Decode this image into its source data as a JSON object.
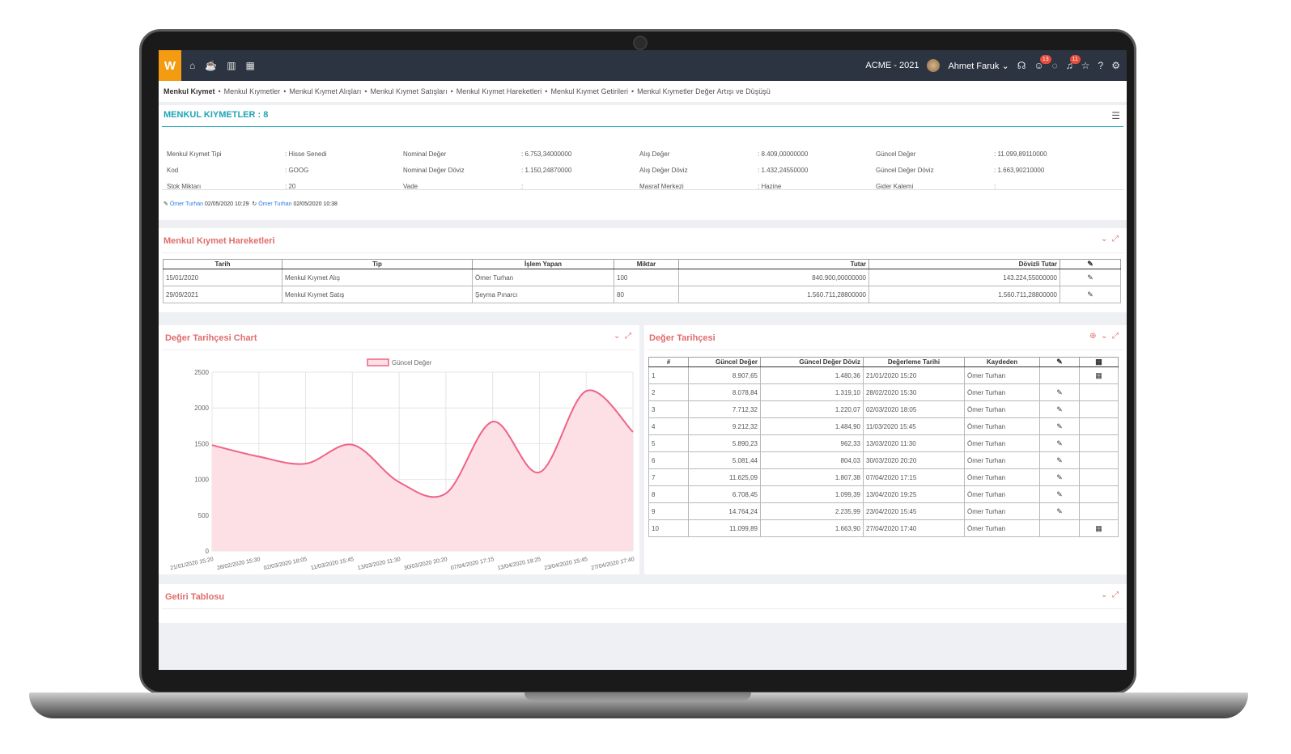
{
  "app": {
    "logo": "W",
    "company": "ACME - 2021",
    "user": "Ahmet Faruk",
    "chat_badge": "13",
    "bell_badge": "11"
  },
  "breadcrumb": {
    "items": [
      "Menkul Kıymet",
      "Menkul Kıymetler",
      "Menkul Kıymet Alışları",
      "Menkul Kıymet Satışları",
      "Menkul Kıymet Hareketleri",
      "Menkul Kıymet Getirileri",
      "Menkul Kıymetler Değer Artışı ve Düşüşü"
    ]
  },
  "summary": {
    "title": "MENKUL KIYMETLER : 8",
    "rows": [
      [
        {
          "label": "Menkul Kıymet Tipi",
          "value": ": Hisse Senedi"
        },
        {
          "label": "Nominal Değer",
          "value": ": 6.753,34000000"
        },
        {
          "label": "Alış Değer",
          "value": ": 8.409,00000000"
        },
        {
          "label": "Güncel Değer",
          "value": ": 11.099,89110000"
        }
      ],
      [
        {
          "label": "Kod",
          "value": ": GOOG"
        },
        {
          "label": "Nominal Değer Döviz",
          "value": ": 1.150,24870000"
        },
        {
          "label": "Alış Değer Döviz",
          "value": ": 1.432,24550000"
        },
        {
          "label": "Güncel Değer Döviz",
          "value": ": 1.663,90210000"
        }
      ],
      [
        {
          "label": "Stok Miktarı",
          "value": ": 20"
        },
        {
          "label": "Vade",
          "value": ":"
        },
        {
          "label": "Masraf Merkezi",
          "value": ": Hazine"
        },
        {
          "label": "Gider Kalemi",
          "value": ":"
        }
      ]
    ],
    "created_by": "Ömer Turhan",
    "created_at": "02/05/2020 10:29",
    "updated_by": "Ömer Turhan",
    "updated_at": "02/05/2020 10:38"
  },
  "movements": {
    "title": "Menkul Kıymet Hareketleri",
    "headers": [
      "Tarih",
      "Tip",
      "İşlem Yapan",
      "Miktar",
      "Tutar",
      "Dövizli Tutar"
    ],
    "rows": [
      [
        "15/01/2020",
        "Menkul Kıymet Alış",
        "Ömer Turhan",
        "100",
        "840.900,00000000",
        "143.224,55000000"
      ],
      [
        "29/09/2021",
        "Menkul Kıymet Satış",
        "Şeyma Pınarcı",
        "80",
        "1.560.711,28800000",
        "1.560.711,28800000"
      ]
    ]
  },
  "chart_panel": {
    "title": "Değer Tarihçesi Chart"
  },
  "chart_data": {
    "type": "area",
    "x": [
      "21/01/2020 15:20",
      "28/02/2020 15:30",
      "02/03/2020 18:05",
      "11/03/2020 15:45",
      "13/03/2020 11:30",
      "30/03/2020 20:20",
      "07/04/2020 17:15",
      "13/04/2020 19:25",
      "23/04/2020 15:45",
      "27/04/2020 17:40"
    ],
    "series": [
      {
        "name": "Güncel Değer",
        "values": [
          1480,
          1319,
          1220,
          1485,
          962,
          804,
          1807,
          1099,
          2236,
          1664
        ]
      }
    ],
    "ylim": [
      0,
      2500
    ],
    "yticks": [
      0,
      500,
      1000,
      1500,
      2000,
      2500
    ],
    "grid": true,
    "legend": "top-center",
    "color": "#f06286",
    "fill": "#fde0e6"
  },
  "history": {
    "title": "Değer Tarihçesi",
    "headers": [
      "#",
      "Güncel Değer",
      "Güncel Değer Döviz",
      "Değerleme Tarihi",
      "Kaydeden"
    ],
    "rows": [
      [
        "1",
        "8.907,65",
        "1.480,36",
        "21/01/2020 15:20",
        "Ömer Turhan"
      ],
      [
        "2",
        "8.078,84",
        "1.319,10",
        "28/02/2020 15:30",
        "Ömer Turhan"
      ],
      [
        "3",
        "7.712,32",
        "1.220,07",
        "02/03/2020 18:05",
        "Ömer Turhan"
      ],
      [
        "4",
        "9.212,32",
        "1.484,90",
        "11/03/2020 15:45",
        "Ömer Turhan"
      ],
      [
        "5",
        "5.890,23",
        "962,33",
        "13/03/2020 11:30",
        "Ömer Turhan"
      ],
      [
        "6",
        "5.081,44",
        "804,03",
        "30/03/2020 20:20",
        "Ömer Turhan"
      ],
      [
        "7",
        "11.625,09",
        "1.807,38",
        "07/04/2020 17:15",
        "Ömer Turhan"
      ],
      [
        "8",
        "6.708,45",
        "1.099,39",
        "13/04/2020 19:25",
        "Ömer Turhan"
      ],
      [
        "9",
        "14.764,24",
        "2.235,99",
        "23/04/2020 15:45",
        "Ömer Turhan"
      ],
      [
        "10",
        "11.099,89",
        "1.663,90",
        "27/04/2020 17:40",
        "Ömer Turhan"
      ]
    ]
  },
  "returns_panel": {
    "title": "Getiri Tablosu"
  }
}
